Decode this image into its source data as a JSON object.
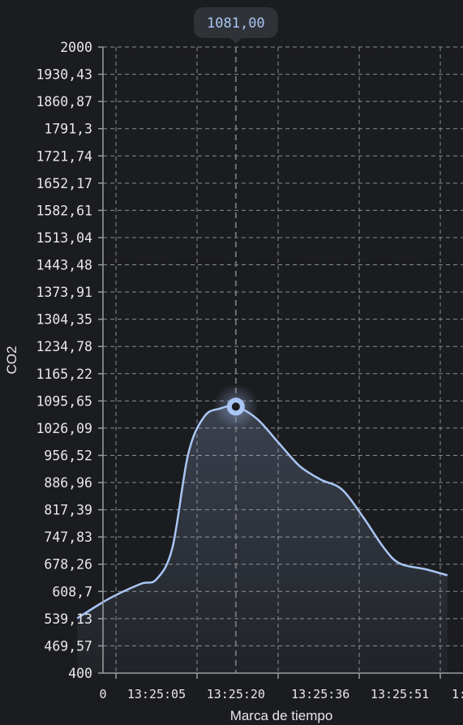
{
  "chart_data": {
    "type": "area",
    "xlabel": "Marca de tiempo",
    "ylabel": "CO2",
    "ylim": [
      400,
      2000
    ],
    "y_ticks": [
      "400",
      "469,57",
      "539,13",
      "608,7",
      "678,26",
      "747,83",
      "817,39",
      "886,96",
      "956,52",
      "1026,09",
      "1095,65",
      "1165,22",
      "1234,78",
      "1304,35",
      "1373,91",
      "1443,48",
      "1513,04",
      "1582,61",
      "1652,17",
      "1721,74",
      "1791,3",
      "1860,87",
      "1930,43",
      "2000"
    ],
    "x_ticks": [
      "13:25:05",
      "13:25:20",
      "13:25:36",
      "13:25:51"
    ],
    "x_ticks_partial": [
      "0",
      "1:"
    ],
    "grid": true,
    "line_color": "#a9c6f5",
    "series": [
      {
        "x": [
          "13:24:50",
          "13:24:56",
          "13:25:02",
          "13:25:05",
          "13:25:08",
          "13:25:11",
          "13:25:14",
          "13:25:17",
          "13:25:20",
          "13:25:24",
          "13:25:28",
          "13:25:32",
          "13:25:36",
          "13:25:40",
          "13:25:44",
          "13:25:48",
          "13:25:51",
          "13:25:56",
          "13:26:00"
        ],
        "values": [
          540,
          590,
          628,
          640,
          720,
          960,
          1055,
          1076,
          1081,
          1050,
          990,
          930,
          895,
          870,
          800,
          720,
          680,
          665,
          650
        ]
      }
    ],
    "tooltip": {
      "x": "13:25:20",
      "value": 1081,
      "label": "1081,00"
    }
  }
}
